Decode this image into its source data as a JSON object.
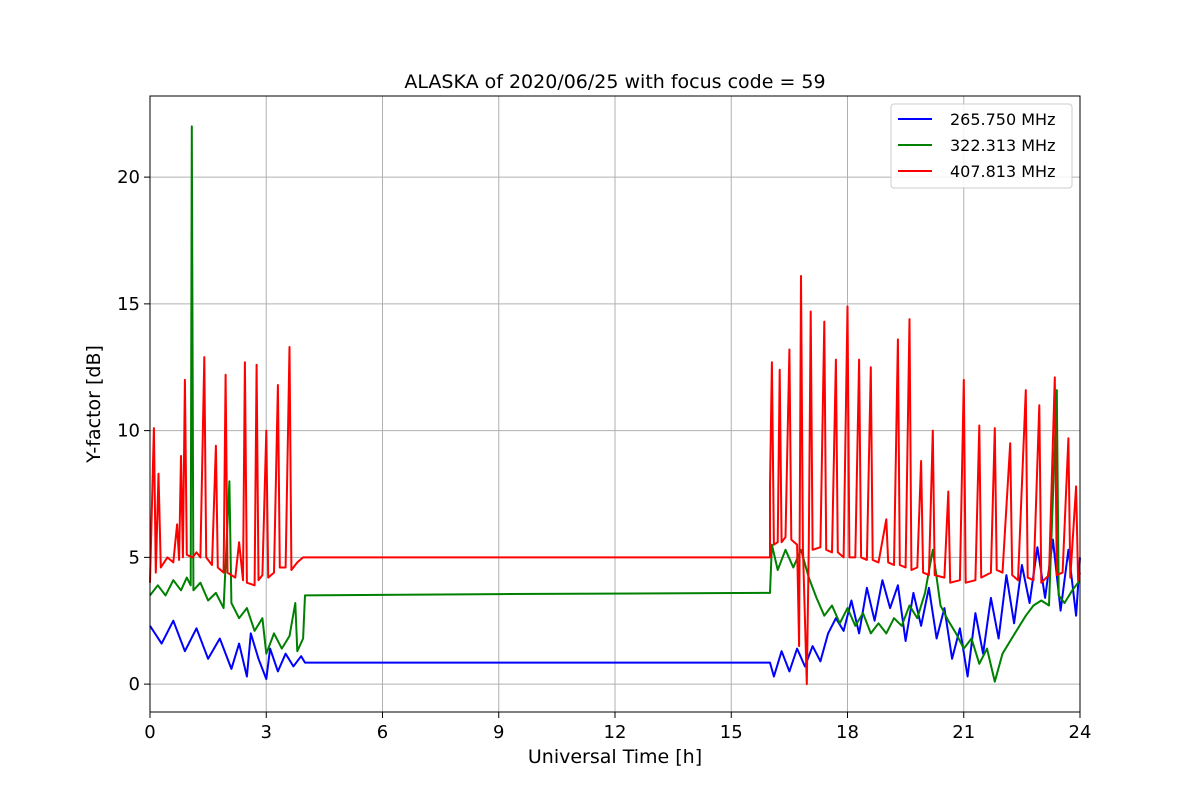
{
  "chart_data": {
    "type": "line",
    "title": "ALASKA of 2020/06/25 with focus code = 59",
    "xlabel": "Universal Time [h]",
    "ylabel": "Y-factor [dB]",
    "xlim": [
      0,
      24
    ],
    "ylim": [
      -1.1,
      23.2
    ],
    "xticks": [
      0,
      3,
      6,
      9,
      12,
      15,
      18,
      21,
      24
    ],
    "yticks": [
      0,
      5,
      10,
      15,
      20
    ],
    "grid": true,
    "legend_position": "top-right",
    "series": [
      {
        "name": "265.750 MHz",
        "color": "#0000ff",
        "points": [
          [
            0.0,
            2.3
          ],
          [
            0.3,
            1.6
          ],
          [
            0.6,
            2.5
          ],
          [
            0.9,
            1.3
          ],
          [
            1.2,
            2.2
          ],
          [
            1.5,
            1.0
          ],
          [
            1.8,
            1.8
          ],
          [
            2.1,
            0.6
          ],
          [
            2.3,
            1.6
          ],
          [
            2.5,
            0.3
          ],
          [
            2.6,
            2.0
          ],
          [
            2.8,
            1.0
          ],
          [
            3.0,
            0.2
          ],
          [
            3.1,
            1.4
          ],
          [
            3.3,
            0.5
          ],
          [
            3.5,
            1.2
          ],
          [
            3.7,
            0.7
          ],
          [
            3.9,
            1.1
          ],
          [
            4.0,
            0.85
          ],
          [
            9.0,
            0.85
          ],
          [
            16.0,
            0.85
          ],
          [
            16.1,
            0.3
          ],
          [
            16.3,
            1.3
          ],
          [
            16.5,
            0.5
          ],
          [
            16.7,
            1.4
          ],
          [
            16.9,
            0.7
          ],
          [
            17.1,
            1.5
          ],
          [
            17.3,
            0.9
          ],
          [
            17.5,
            2.0
          ],
          [
            17.7,
            2.6
          ],
          [
            17.9,
            2.1
          ],
          [
            18.1,
            3.3
          ],
          [
            18.3,
            2.0
          ],
          [
            18.5,
            3.8
          ],
          [
            18.7,
            2.5
          ],
          [
            18.9,
            4.1
          ],
          [
            19.1,
            3.0
          ],
          [
            19.3,
            3.9
          ],
          [
            19.5,
            1.7
          ],
          [
            19.7,
            3.6
          ],
          [
            19.9,
            2.3
          ],
          [
            20.1,
            3.8
          ],
          [
            20.3,
            1.8
          ],
          [
            20.5,
            3.0
          ],
          [
            20.7,
            1.0
          ],
          [
            20.9,
            2.2
          ],
          [
            21.1,
            0.3
          ],
          [
            21.3,
            2.8
          ],
          [
            21.5,
            1.2
          ],
          [
            21.7,
            3.4
          ],
          [
            21.9,
            1.8
          ],
          [
            22.1,
            4.3
          ],
          [
            22.3,
            2.4
          ],
          [
            22.5,
            4.7
          ],
          [
            22.7,
            3.2
          ],
          [
            22.9,
            5.4
          ],
          [
            23.1,
            3.4
          ],
          [
            23.3,
            5.7
          ],
          [
            23.5,
            2.9
          ],
          [
            23.7,
            5.3
          ],
          [
            23.9,
            2.7
          ],
          [
            24.0,
            5.0
          ]
        ]
      },
      {
        "name": "322.313 MHz",
        "color": "#008000",
        "points": [
          [
            0.0,
            3.5
          ],
          [
            0.2,
            3.9
          ],
          [
            0.4,
            3.5
          ],
          [
            0.6,
            4.1
          ],
          [
            0.8,
            3.7
          ],
          [
            0.95,
            4.2
          ],
          [
            1.05,
            3.9
          ],
          [
            1.08,
            22.0
          ],
          [
            1.12,
            3.7
          ],
          [
            1.3,
            4.0
          ],
          [
            1.5,
            3.3
          ],
          [
            1.7,
            3.6
          ],
          [
            1.9,
            3.0
          ],
          [
            2.05,
            8.0
          ],
          [
            2.1,
            3.2
          ],
          [
            2.3,
            2.6
          ],
          [
            2.5,
            3.0
          ],
          [
            2.7,
            2.1
          ],
          [
            2.9,
            2.6
          ],
          [
            3.0,
            1.2
          ],
          [
            3.2,
            2.0
          ],
          [
            3.4,
            1.4
          ],
          [
            3.6,
            1.9
          ],
          [
            3.75,
            3.2
          ],
          [
            3.8,
            1.3
          ],
          [
            3.95,
            1.8
          ],
          [
            4.0,
            3.5
          ],
          [
            9.0,
            3.55
          ],
          [
            16.0,
            3.6
          ],
          [
            16.05,
            5.5
          ],
          [
            16.2,
            4.5
          ],
          [
            16.4,
            5.3
          ],
          [
            16.6,
            4.6
          ],
          [
            16.8,
            5.3
          ],
          [
            17.0,
            4.2
          ],
          [
            17.2,
            3.4
          ],
          [
            17.4,
            2.7
          ],
          [
            17.6,
            3.1
          ],
          [
            17.8,
            2.4
          ],
          [
            18.0,
            3.0
          ],
          [
            18.2,
            2.3
          ],
          [
            18.4,
            2.8
          ],
          [
            18.6,
            2.0
          ],
          [
            18.8,
            2.4
          ],
          [
            19.0,
            2.0
          ],
          [
            19.2,
            2.6
          ],
          [
            19.4,
            2.3
          ],
          [
            19.6,
            3.1
          ],
          [
            19.8,
            2.6
          ],
          [
            20.0,
            3.6
          ],
          [
            20.2,
            5.3
          ],
          [
            20.4,
            3.1
          ],
          [
            20.6,
            2.5
          ],
          [
            20.8,
            2.0
          ],
          [
            21.0,
            1.4
          ],
          [
            21.2,
            1.8
          ],
          [
            21.4,
            0.8
          ],
          [
            21.6,
            1.4
          ],
          [
            21.8,
            0.1
          ],
          [
            22.0,
            1.2
          ],
          [
            22.2,
            1.7
          ],
          [
            22.4,
            2.2
          ],
          [
            22.6,
            2.7
          ],
          [
            22.8,
            3.1
          ],
          [
            23.0,
            3.3
          ],
          [
            23.2,
            3.1
          ],
          [
            23.4,
            11.6
          ],
          [
            23.45,
            3.5
          ],
          [
            23.6,
            3.2
          ],
          [
            23.8,
            3.7
          ],
          [
            24.0,
            4.1
          ]
        ]
      },
      {
        "name": "407.813 MHz",
        "color": "#ff0000",
        "points": [
          [
            0.0,
            4.0
          ],
          [
            0.1,
            10.1
          ],
          [
            0.15,
            4.4
          ],
          [
            0.22,
            8.3
          ],
          [
            0.28,
            4.6
          ],
          [
            0.45,
            5.0
          ],
          [
            0.6,
            4.8
          ],
          [
            0.7,
            6.3
          ],
          [
            0.75,
            4.9
          ],
          [
            0.8,
            9.0
          ],
          [
            0.85,
            5.0
          ],
          [
            0.9,
            12.0
          ],
          [
            0.95,
            5.1
          ],
          [
            1.1,
            5.0
          ],
          [
            1.2,
            5.2
          ],
          [
            1.3,
            5.0
          ],
          [
            1.4,
            12.9
          ],
          [
            1.45,
            5.0
          ],
          [
            1.5,
            4.9
          ],
          [
            1.6,
            4.7
          ],
          [
            1.7,
            9.4
          ],
          [
            1.75,
            4.6
          ],
          [
            1.9,
            4.4
          ],
          [
            1.95,
            12.2
          ],
          [
            2.0,
            4.4
          ],
          [
            2.2,
            4.2
          ],
          [
            2.3,
            5.6
          ],
          [
            2.4,
            4.1
          ],
          [
            2.45,
            12.7
          ],
          [
            2.5,
            4.0
          ],
          [
            2.7,
            3.9
          ],
          [
            2.75,
            12.6
          ],
          [
            2.8,
            4.1
          ],
          [
            2.9,
            4.3
          ],
          [
            3.0,
            10.0
          ],
          [
            3.05,
            4.2
          ],
          [
            3.2,
            4.4
          ],
          [
            3.3,
            11.8
          ],
          [
            3.35,
            4.6
          ],
          [
            3.5,
            4.6
          ],
          [
            3.6,
            13.3
          ],
          [
            3.65,
            4.5
          ],
          [
            3.8,
            4.8
          ],
          [
            3.95,
            5.0
          ],
          [
            4.0,
            5.0
          ],
          [
            10.0,
            5.0
          ],
          [
            16.0,
            5.0
          ],
          [
            16.0,
            7.8
          ],
          [
            16.05,
            12.7
          ],
          [
            16.1,
            5.5
          ],
          [
            16.2,
            5.6
          ],
          [
            16.25,
            12.4
          ],
          [
            16.3,
            5.6
          ],
          [
            16.4,
            5.8
          ],
          [
            16.5,
            13.2
          ],
          [
            16.55,
            5.7
          ],
          [
            16.7,
            5.5
          ],
          [
            16.75,
            1.5
          ],
          [
            16.8,
            16.1
          ],
          [
            16.85,
            5.4
          ],
          [
            16.95,
            0.0
          ],
          [
            17.0,
            5.5
          ],
          [
            17.05,
            14.7
          ],
          [
            17.1,
            5.3
          ],
          [
            17.3,
            5.4
          ],
          [
            17.4,
            14.3
          ],
          [
            17.45,
            5.3
          ],
          [
            17.6,
            5.2
          ],
          [
            17.7,
            12.8
          ],
          [
            17.75,
            5.2
          ],
          [
            17.9,
            5.0
          ],
          [
            18.0,
            14.9
          ],
          [
            18.05,
            5.0
          ],
          [
            18.2,
            5.0
          ],
          [
            18.3,
            12.8
          ],
          [
            18.35,
            5.0
          ],
          [
            18.5,
            4.9
          ],
          [
            18.6,
            12.5
          ],
          [
            18.65,
            4.9
          ],
          [
            18.8,
            4.8
          ],
          [
            19.0,
            6.5
          ],
          [
            19.05,
            4.8
          ],
          [
            19.2,
            4.7
          ],
          [
            19.3,
            13.6
          ],
          [
            19.35,
            4.7
          ],
          [
            19.5,
            4.6
          ],
          [
            19.6,
            14.4
          ],
          [
            19.65,
            4.5
          ],
          [
            19.8,
            4.6
          ],
          [
            19.9,
            8.8
          ],
          [
            19.95,
            4.4
          ],
          [
            20.1,
            4.3
          ],
          [
            20.2,
            10.0
          ],
          [
            20.25,
            4.3
          ],
          [
            20.5,
            4.2
          ],
          [
            20.6,
            7.6
          ],
          [
            20.65,
            4.0
          ],
          [
            20.9,
            4.1
          ],
          [
            21.0,
            12.0
          ],
          [
            21.05,
            4.0
          ],
          [
            21.3,
            4.1
          ],
          [
            21.4,
            10.2
          ],
          [
            21.45,
            4.2
          ],
          [
            21.7,
            4.4
          ],
          [
            21.8,
            10.1
          ],
          [
            21.85,
            4.5
          ],
          [
            22.0,
            4.4
          ],
          [
            22.2,
            9.5
          ],
          [
            22.25,
            4.3
          ],
          [
            22.4,
            4.1
          ],
          [
            22.6,
            11.6
          ],
          [
            22.65,
            4.2
          ],
          [
            22.8,
            4.1
          ],
          [
            22.95,
            11.0
          ],
          [
            23.0,
            4.0
          ],
          [
            23.2,
            4.3
          ],
          [
            23.35,
            12.1
          ],
          [
            23.4,
            4.3
          ],
          [
            23.55,
            4.4
          ],
          [
            23.7,
            9.7
          ],
          [
            23.75,
            4.2
          ],
          [
            23.9,
            7.8
          ],
          [
            23.95,
            4.1
          ],
          [
            24.0,
            4.4
          ]
        ]
      }
    ]
  }
}
